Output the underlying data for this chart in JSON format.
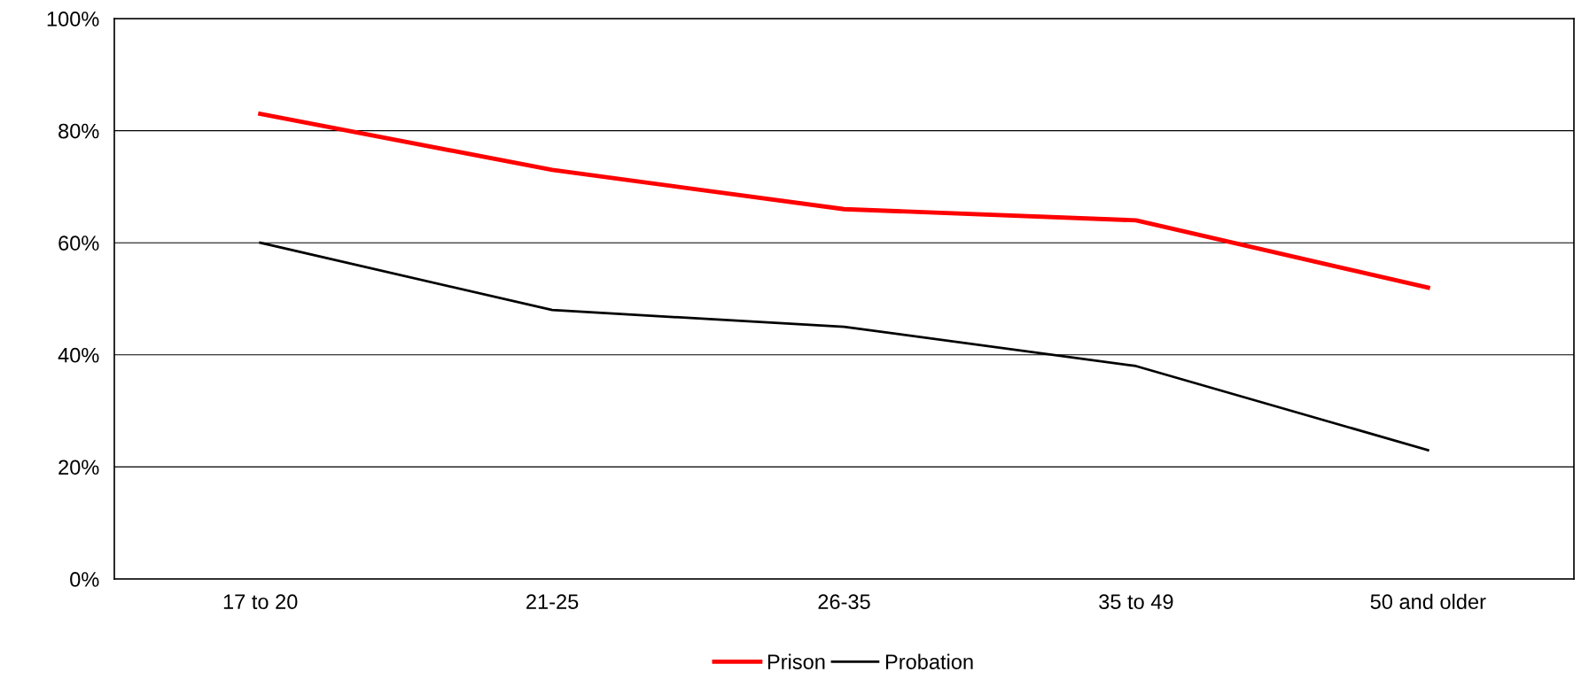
{
  "chart_data": {
    "type": "line",
    "categories": [
      "17 to 20",
      "21-25",
      "26-35",
      "35 to 49",
      "50 and older"
    ],
    "series": [
      {
        "name": "Prison",
        "color": "#ff0000",
        "values": [
          83,
          73,
          66,
          64,
          52
        ]
      },
      {
        "name": "Probation",
        "color": "#000000",
        "values": [
          60,
          48,
          45,
          38,
          23
        ]
      }
    ],
    "ylim": [
      0,
      100
    ],
    "yticks": [
      {
        "value": 0,
        "label": "0%"
      },
      {
        "value": 20,
        "label": "20%"
      },
      {
        "value": 40,
        "label": "40%"
      },
      {
        "value": 60,
        "label": "60%"
      },
      {
        "value": 80,
        "label": "80%"
      },
      {
        "value": 100,
        "label": "100%"
      }
    ],
    "grid": "y",
    "legend": "bottom",
    "marker": "none",
    "line_style": "solid"
  }
}
